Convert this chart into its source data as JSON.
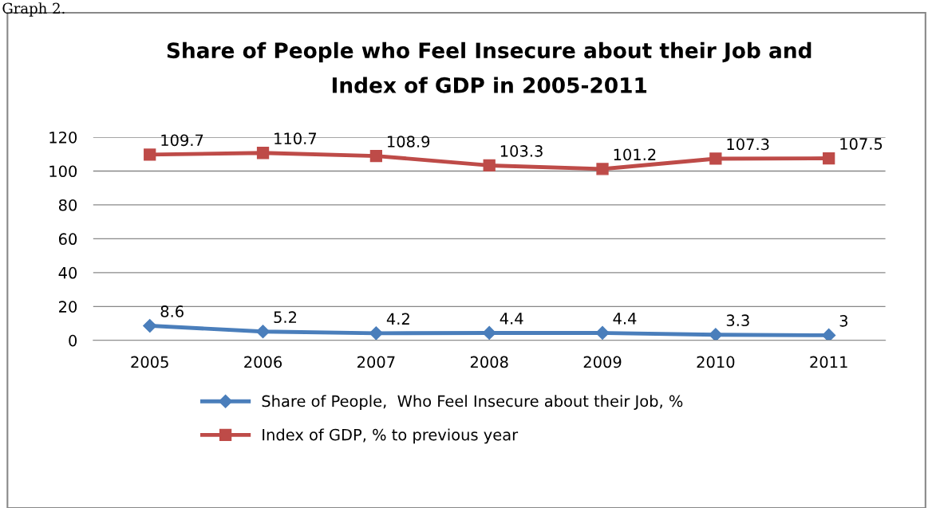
{
  "chart_data": {
    "type": "line",
    "title": "Share of People who Feel Insecure about their Job and\nIndex of GDP in 2005-2011",
    "categories": [
      "2005",
      "2006",
      "2007",
      "2008",
      "2009",
      "2010",
      "2011"
    ],
    "series": [
      {
        "name": "Share of People,  Who Feel Insecure about their Job, %",
        "color": "#4a7ebb",
        "marker": "diamond",
        "values": [
          8.6,
          5.2,
          4.2,
          4.4,
          4.4,
          3.3,
          3
        ]
      },
      {
        "name": "Index of GDP, % to previous year",
        "color": "#be4b48",
        "marker": "square",
        "values": [
          109.7,
          110.7,
          108.9,
          103.3,
          101.2,
          107.3,
          107.5
        ]
      }
    ],
    "ylim": [
      0,
      120
    ],
    "yticks": [
      0,
      20,
      40,
      60,
      80,
      100,
      120
    ],
    "grid": "y",
    "legend": "bottom",
    "data_labels": true,
    "line_style": "solid",
    "annotations": [
      "Graph 2."
    ]
  }
}
